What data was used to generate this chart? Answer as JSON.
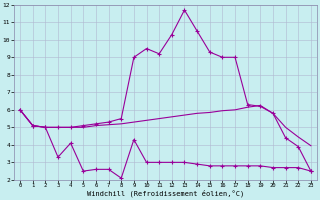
{
  "xlabel": "Windchill (Refroidissement éolien,°C)",
  "xlim": [
    -0.5,
    23.5
  ],
  "ylim": [
    2,
    12
  ],
  "yticks": [
    2,
    3,
    4,
    5,
    6,
    7,
    8,
    9,
    10,
    11,
    12
  ],
  "xticks": [
    0,
    1,
    2,
    3,
    4,
    5,
    6,
    7,
    8,
    9,
    10,
    11,
    12,
    13,
    14,
    15,
    16,
    17,
    18,
    19,
    20,
    21,
    22,
    23
  ],
  "background_color": "#c8eef0",
  "grid_color": "#b0b8d0",
  "line_color": "#990099",
  "line1_x": [
    0,
    1,
    2,
    3,
    4,
    5,
    6,
    7,
    8,
    9,
    10,
    11,
    12,
    13,
    14,
    15,
    16,
    17,
    18,
    19,
    20,
    21,
    22,
    23
  ],
  "line1_y": [
    6.0,
    5.1,
    5.0,
    3.3,
    4.1,
    2.5,
    2.6,
    2.6,
    2.1,
    4.3,
    3.0,
    3.0,
    3.0,
    3.0,
    2.9,
    2.8,
    2.8,
    2.8,
    2.8,
    2.8,
    2.7,
    2.7,
    2.7,
    2.5
  ],
  "line2_x": [
    0,
    1,
    2,
    3,
    4,
    5,
    6,
    7,
    8,
    9,
    10,
    11,
    12,
    13,
    14,
    15,
    16,
    17,
    18,
    19,
    20,
    21,
    22,
    23
  ],
  "line2_y": [
    6.0,
    5.1,
    5.0,
    5.0,
    5.0,
    5.0,
    5.1,
    5.15,
    5.2,
    5.3,
    5.4,
    5.5,
    5.6,
    5.7,
    5.8,
    5.85,
    5.95,
    6.0,
    6.15,
    6.25,
    5.8,
    5.0,
    4.45,
    3.95
  ],
  "line3_x": [
    0,
    1,
    2,
    3,
    4,
    5,
    6,
    7,
    8,
    9,
    10,
    11,
    12,
    13,
    14,
    15,
    16,
    17,
    18,
    19,
    20,
    21,
    22,
    23
  ],
  "line3_y": [
    6.0,
    5.1,
    5.0,
    5.0,
    5.0,
    5.1,
    5.2,
    5.3,
    5.5,
    9.0,
    9.5,
    9.2,
    10.3,
    11.7,
    10.5,
    9.3,
    9.0,
    9.0,
    6.3,
    6.2,
    5.8,
    4.4,
    3.9,
    2.5
  ],
  "linewidth": 0.8,
  "markersize": 3,
  "figsize": [
    3.2,
    2.0
  ],
  "dpi": 100
}
